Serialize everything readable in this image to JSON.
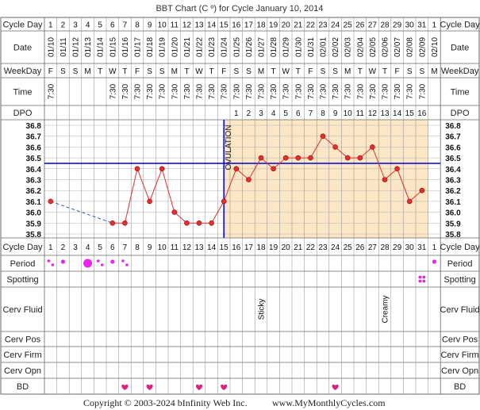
{
  "title": "BBT Chart (C º) for Cycle January 10, 2014",
  "footer": {
    "copyright": "Copyright © 2003-2024 bInfinity Web Inc.",
    "site": "www.MyMonthlyCycles.com"
  },
  "row_labels": {
    "cycle_day": "Cycle Day",
    "date": "Date",
    "weekday": "WeekDay",
    "time": "Time",
    "dpo": "DPO",
    "period": "Period",
    "spotting": "Spotting",
    "cerv_fluid": "Cerv Fluid",
    "cerv_pos": "Cerv Pos",
    "cerv_firm": "Cerv Firm",
    "cerv_opn": "Cerv Opn",
    "bd": "BD"
  },
  "ovulation_label": "OVULATION",
  "colors": {
    "line": "#e03030",
    "marker": "#e03030",
    "luteal_bg": "#fbe7c6",
    "coverline": "#0000cc",
    "ovulation_line": "#0000cc",
    "period": "#ee22ee",
    "bd_heart": "#e0207a",
    "grid": "#999999"
  },
  "chart_data": {
    "type": "line",
    "title": "BBT Chart (C º) for Cycle January 10, 2014",
    "cycle_days": [
      "1",
      "2",
      "3",
      "4",
      "5",
      "6",
      "7",
      "8",
      "9",
      "10",
      "11",
      "12",
      "13",
      "14",
      "15",
      "16",
      "17",
      "18",
      "19",
      "20",
      "21",
      "22",
      "23",
      "24",
      "25",
      "26",
      "27",
      "28",
      "29",
      "30",
      "31",
      "1"
    ],
    "dates": [
      "01/10",
      "01/11",
      "01/12",
      "01/13",
      "01/14",
      "01/15",
      "01/16",
      "01/17",
      "01/18",
      "01/19",
      "01/20",
      "01/21",
      "01/22",
      "01/23",
      "01/24",
      "01/25",
      "01/26",
      "01/27",
      "01/28",
      "01/29",
      "01/30",
      "01/31",
      "02/01",
      "02/02",
      "02/03",
      "02/04",
      "02/05",
      "02/06",
      "02/07",
      "02/08",
      "02/09",
      "02/10"
    ],
    "weekdays": [
      "F",
      "S",
      "S",
      "M",
      "T",
      "W",
      "T",
      "F",
      "S",
      "S",
      "M",
      "T",
      "W",
      "T",
      "F",
      "S",
      "S",
      "M",
      "T",
      "W",
      "T",
      "F",
      "S",
      "S",
      "M",
      "T",
      "W",
      "T",
      "F",
      "S",
      "S",
      "M"
    ],
    "times": [
      "7:30",
      "",
      "",
      "",
      "",
      "7:30",
      "7:30",
      "7:30",
      "7:30",
      "7:30",
      "7:30",
      "7:30",
      "7:30",
      "7:30",
      "7:30",
      "7:30",
      "7:30",
      "7:30",
      "7:30",
      "7:30",
      "7:30",
      "7:30",
      "7:30",
      "7:30",
      "7:30",
      "7:30",
      "7:30",
      "7:30",
      "7:30",
      "7:30",
      "7:30",
      ""
    ],
    "dpo": [
      "",
      "",
      "",
      "",
      "",
      "",
      "",
      "",
      "",
      "",
      "",
      "",
      "",
      "",
      "",
      "1",
      "2",
      "3",
      "4",
      "5",
      "6",
      "7",
      "8",
      "9",
      "10",
      "11",
      "12",
      "13",
      "14",
      "15",
      "16",
      ""
    ],
    "temperatures": [
      36.1,
      null,
      null,
      null,
      null,
      35.9,
      35.9,
      36.4,
      36.1,
      36.4,
      36.0,
      35.9,
      35.9,
      35.9,
      36.1,
      36.4,
      36.3,
      36.5,
      36.4,
      36.5,
      36.5,
      36.5,
      36.7,
      36.6,
      36.5,
      36.5,
      36.6,
      36.3,
      36.4,
      36.1,
      36.2,
      null
    ],
    "y_ticks": [
      "36.8",
      "36.7",
      "36.6",
      "36.5",
      "36.4",
      "36.3",
      "36.2",
      "36.1",
      "36.0",
      "35.9",
      "35.8"
    ],
    "ylim": [
      35.8,
      36.8
    ],
    "coverline": 36.45,
    "ovulation_day": 15,
    "period": [
      "spot",
      "light",
      "",
      "heavy",
      "spot",
      "light",
      "spot",
      "",
      "",
      "",
      "",
      "",
      "",
      "",
      "",
      "",
      "",
      "",
      "",
      "",
      "",
      "",
      "",
      "",
      "",
      "",
      "",
      "",
      "",
      "",
      "",
      "light"
    ],
    "spotting": [
      "",
      "",
      "",
      "",
      "",
      "",
      "",
      "",
      "",
      "",
      "",
      "",
      "",
      "",
      "",
      "",
      "",
      "",
      "",
      "",
      "",
      "",
      "",
      "",
      "",
      "",
      "",
      "",
      "",
      "",
      "spot",
      ""
    ],
    "cerv_fluid": [
      "",
      "",
      "",
      "",
      "",
      "",
      "",
      "",
      "",
      "",
      "",
      "",
      "",
      "",
      "",
      "",
      "",
      "Sticky",
      "",
      "",
      "",
      "",
      "",
      "",
      "",
      "",
      "",
      "Creamy",
      "",
      "",
      "",
      ""
    ],
    "bd": [
      false,
      false,
      false,
      false,
      false,
      false,
      true,
      false,
      true,
      false,
      false,
      false,
      true,
      false,
      true,
      false,
      false,
      false,
      false,
      false,
      false,
      false,
      false,
      true,
      false,
      false,
      false,
      false,
      false,
      false,
      false,
      false
    ]
  }
}
